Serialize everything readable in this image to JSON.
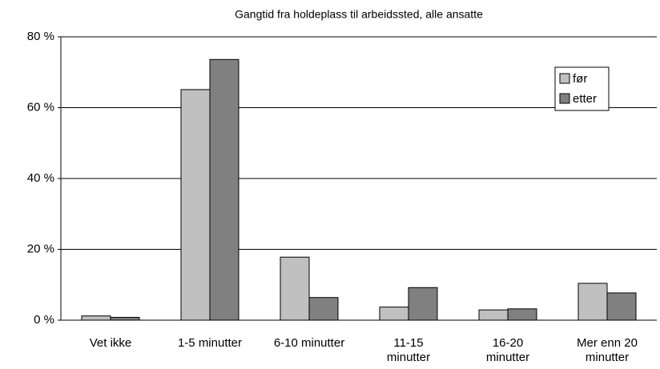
{
  "chart_data": {
    "type": "bar",
    "title": "Gangtid fra holdeplass til arbeidssted, alle ansatte",
    "categories": [
      "Vet ikke",
      "1-5 minutter",
      "6-10 minutter",
      "11-15 minutter",
      "16-20 minutter",
      "Mer enn 20 minutter"
    ],
    "series": [
      {
        "name": "før",
        "color": "#c0c0c0",
        "values": [
          1.2,
          65.1,
          17.8,
          3.7,
          2.9,
          10.4
        ]
      },
      {
        "name": "etter",
        "color": "#808080",
        "values": [
          0.8,
          73.6,
          6.4,
          9.2,
          3.2,
          7.7
        ]
      }
    ],
    "ylim": [
      0,
      80
    ],
    "yticks": [
      {
        "value": 0,
        "label": "0 %"
      },
      {
        "value": 20,
        "label": "20 %"
      },
      {
        "value": 40,
        "label": "40 %"
      },
      {
        "value": 60,
        "label": "60 %"
      },
      {
        "value": 80,
        "label": "80 %"
      }
    ],
    "grid": true,
    "legend": "upper right"
  }
}
